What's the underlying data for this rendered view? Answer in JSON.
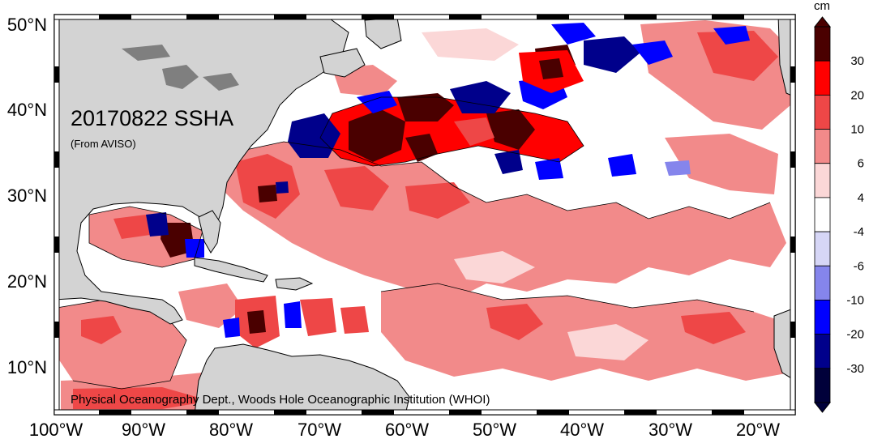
{
  "map": {
    "title": "20170822 SSHA",
    "subtitle": "(From AVISO)",
    "credit": "Physical Oceanography Dept., Woods Hole Oceanographic Institution (WHOI)",
    "lat_labels": [
      "10°N",
      "20°N",
      "30°N",
      "40°N",
      "50°N"
    ],
    "lon_labels": [
      "100°W",
      "90°W",
      "80°W",
      "70°W",
      "60°W",
      "50°W",
      "40°W",
      "30°W",
      "20°W"
    ],
    "land_color": "#d3d3d3",
    "background_color": "#ffffff"
  },
  "colorbar": {
    "unit": "cm",
    "tick_labels": [
      "30",
      "20",
      "10",
      "6",
      "4",
      "-4",
      "-6",
      "-10",
      "-20",
      "-30"
    ],
    "bins": [
      {
        "label": ">30",
        "color": "#4a0000"
      },
      {
        "label": "20 to 30",
        "color": "#ff0000"
      },
      {
        "label": "10 to 20",
        "color": "#ee4747"
      },
      {
        "label": "6 to 10",
        "color": "#f28a8a"
      },
      {
        "label": "4 to 6",
        "color": "#fbd7d7"
      },
      {
        "label": "-4 to 4",
        "color": "#ffffff"
      },
      {
        "label": "-6 to -4",
        "color": "#d6d6f6"
      },
      {
        "label": "-10 to -6",
        "color": "#8585ec"
      },
      {
        "label": "-20 to -10",
        "color": "#0000ff"
      },
      {
        "label": "-30 to -20",
        "color": "#00008b"
      },
      {
        "label": "<-30",
        "color": "#00003a"
      }
    ]
  }
}
